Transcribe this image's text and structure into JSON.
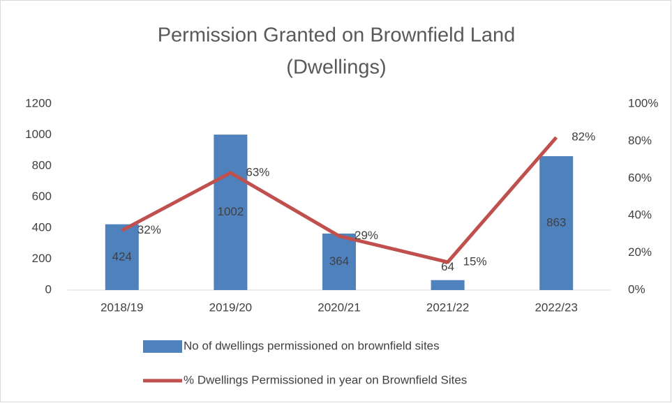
{
  "chart_data": {
    "type": "bar-line",
    "title": [
      "Permission Granted on Brownfield Land",
      "(Dwellings)"
    ],
    "categories": [
      "2018/19",
      "2019/20",
      "2020/21",
      "2021/22",
      "2022/23"
    ],
    "series": [
      {
        "name": "No of dwellings permissioned on brownfield sites",
        "type": "bar",
        "color": "#4f81bd",
        "values": [
          424,
          1002,
          364,
          64,
          863
        ]
      },
      {
        "name": "% Dwellings Permissioned in year on Brownfield Sites",
        "type": "line",
        "axis": "y2",
        "color": "#c0504d",
        "values": [
          32,
          63,
          29,
          15,
          82
        ],
        "value_labels": [
          "32%",
          "63%",
          "29%",
          "15%",
          "82%"
        ]
      }
    ],
    "ylim": [
      0,
      1200
    ],
    "yticks": [
      0,
      200,
      400,
      600,
      800,
      1000,
      1200
    ],
    "y2lim": [
      0,
      100
    ],
    "y2ticks": [
      {
        "value": 0,
        "label": "0%"
      },
      {
        "value": 20,
        "label": "20%"
      },
      {
        "value": 40,
        "label": "40%"
      },
      {
        "value": 60,
        "label": "60%"
      },
      {
        "value": 80,
        "label": "80%"
      },
      {
        "value": 100,
        "label": "100%"
      }
    ],
    "grid": false,
    "legend": "bottom"
  }
}
